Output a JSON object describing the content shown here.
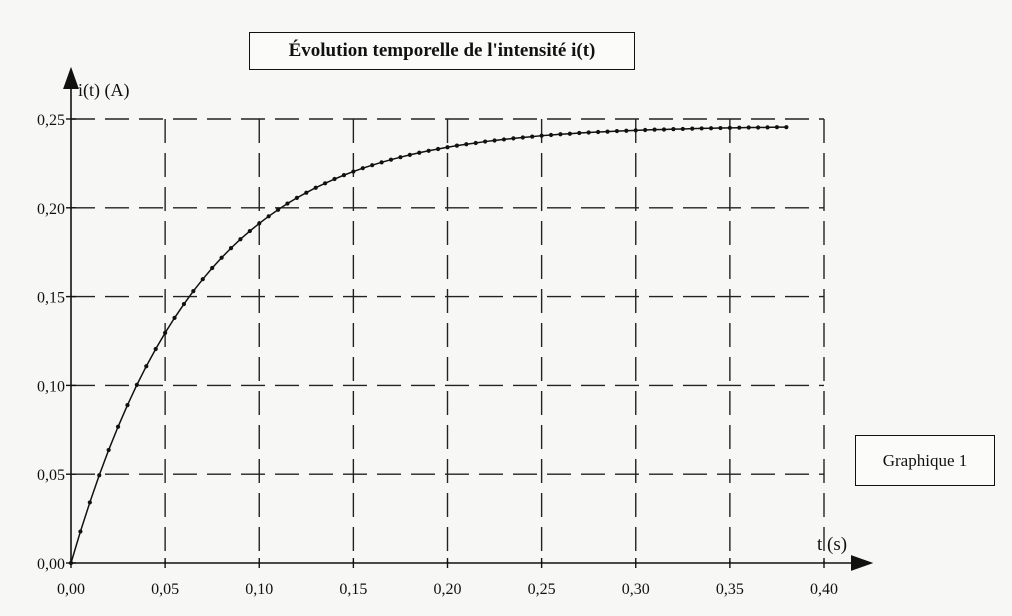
{
  "chart_data": {
    "type": "line",
    "title": "Évolution temporelle de l'intensité i(t)",
    "xlabel": "t (s)",
    "ylabel": "i(t) (A)",
    "caption": "Graphique 1",
    "xlim": [
      0,
      0.4
    ],
    "ylim": [
      0,
      0.25
    ],
    "x_ticks": [
      "0,00",
      "0,05",
      "0,10",
      "0,15",
      "0,20",
      "0,25",
      "0,30",
      "0,35",
      "0,40"
    ],
    "y_ticks": [
      "0,00",
      "0,05",
      "0,10",
      "0,15",
      "0,20",
      "0,25"
    ],
    "grid": "dashed",
    "series": [
      {
        "x": [
          0.0,
          0.005,
          0.01,
          0.015,
          0.02,
          0.025,
          0.03,
          0.035,
          0.04,
          0.045,
          0.05,
          0.055,
          0.06,
          0.065,
          0.07,
          0.075,
          0.08,
          0.085,
          0.09,
          0.095,
          0.1,
          0.105,
          0.11,
          0.115,
          0.12,
          0.125,
          0.13,
          0.135,
          0.14,
          0.145,
          0.15,
          0.155,
          0.16,
          0.165,
          0.17,
          0.175,
          0.18,
          0.185,
          0.19,
          0.195,
          0.2,
          0.205,
          0.21,
          0.215,
          0.22,
          0.225,
          0.23,
          0.235,
          0.24,
          0.245,
          0.25,
          0.255,
          0.26,
          0.265,
          0.27,
          0.275,
          0.28,
          0.285,
          0.29,
          0.295,
          0.3,
          0.305,
          0.31,
          0.315,
          0.32,
          0.325,
          0.33,
          0.335,
          0.34,
          0.345,
          0.35,
          0.355,
          0.36,
          0.365,
          0.37,
          0.375,
          0.38
        ],
        "y": [
          0.0,
          0.0177,
          0.0341,
          0.0494,
          0.0636,
          0.0767,
          0.0889,
          0.1003,
          0.1108,
          0.1205,
          0.1296,
          0.138,
          0.1458,
          0.1531,
          0.1598,
          0.1661,
          0.1719,
          0.1773,
          0.1823,
          0.1869,
          0.1912,
          0.1952,
          0.1989,
          0.2024,
          0.2056,
          0.2085,
          0.2113,
          0.2138,
          0.2162,
          0.2184,
          0.2204,
          0.2223,
          0.224,
          0.2256,
          0.2271,
          0.2285,
          0.2298,
          0.231,
          0.2321,
          0.2331,
          0.2341,
          0.235,
          0.2358,
          0.2365,
          0.2373,
          0.2379,
          0.2385,
          0.2391,
          0.2396,
          0.2401,
          0.2406,
          0.241,
          0.2414,
          0.2417,
          0.2421,
          0.2424,
          0.2427,
          0.2429,
          0.2432,
          0.2434,
          0.2436,
          0.2438,
          0.244,
          0.2441,
          0.2443,
          0.2444,
          0.2446,
          0.2447,
          0.2448,
          0.2449,
          0.245,
          0.2451,
          0.2452,
          0.2452,
          0.2453,
          0.2454,
          0.2454
        ]
      }
    ]
  }
}
